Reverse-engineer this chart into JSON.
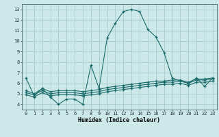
{
  "xlabel": "Humidex (Indice chaleur)",
  "bg_color": "#cce8e8",
  "grid_color": "#aacccc",
  "line_color": "#1a6b6b",
  "xlim": [
    -0.5,
    23.5
  ],
  "ylim": [
    3.5,
    13.5
  ],
  "yticks": [
    4,
    5,
    6,
    7,
    8,
    9,
    10,
    11,
    12,
    13
  ],
  "xticks": [
    0,
    1,
    2,
    3,
    4,
    5,
    6,
    7,
    8,
    9,
    10,
    11,
    12,
    13,
    14,
    15,
    16,
    17,
    18,
    19,
    20,
    21,
    22,
    23
  ],
  "series1_y": [
    6.5,
    4.8,
    5.5,
    4.7,
    4.0,
    4.5,
    4.5,
    4.0,
    7.7,
    5.5,
    10.3,
    11.7,
    12.8,
    13.0,
    12.8,
    11.1,
    10.4,
    8.9,
    6.5,
    6.2,
    6.0,
    6.5,
    5.7,
    6.5
  ],
  "series2_y": [
    5.3,
    5.0,
    5.5,
    5.2,
    5.3,
    5.3,
    5.3,
    5.2,
    5.3,
    5.4,
    5.6,
    5.7,
    5.8,
    5.9,
    6.0,
    6.1,
    6.2,
    6.2,
    6.3,
    6.3,
    6.1,
    6.4,
    6.4,
    6.5
  ],
  "series3_y": [
    5.1,
    4.9,
    5.3,
    5.0,
    5.1,
    5.1,
    5.1,
    5.0,
    5.1,
    5.2,
    5.4,
    5.5,
    5.6,
    5.7,
    5.8,
    5.9,
    6.0,
    6.1,
    6.1,
    6.2,
    6.0,
    6.3,
    6.3,
    6.4
  ],
  "series4_y": [
    4.9,
    4.7,
    5.1,
    4.8,
    4.9,
    4.9,
    4.9,
    4.8,
    4.9,
    5.0,
    5.2,
    5.3,
    5.4,
    5.5,
    5.6,
    5.7,
    5.8,
    5.9,
    5.9,
    6.0,
    5.8,
    6.1,
    6.1,
    6.2
  ]
}
